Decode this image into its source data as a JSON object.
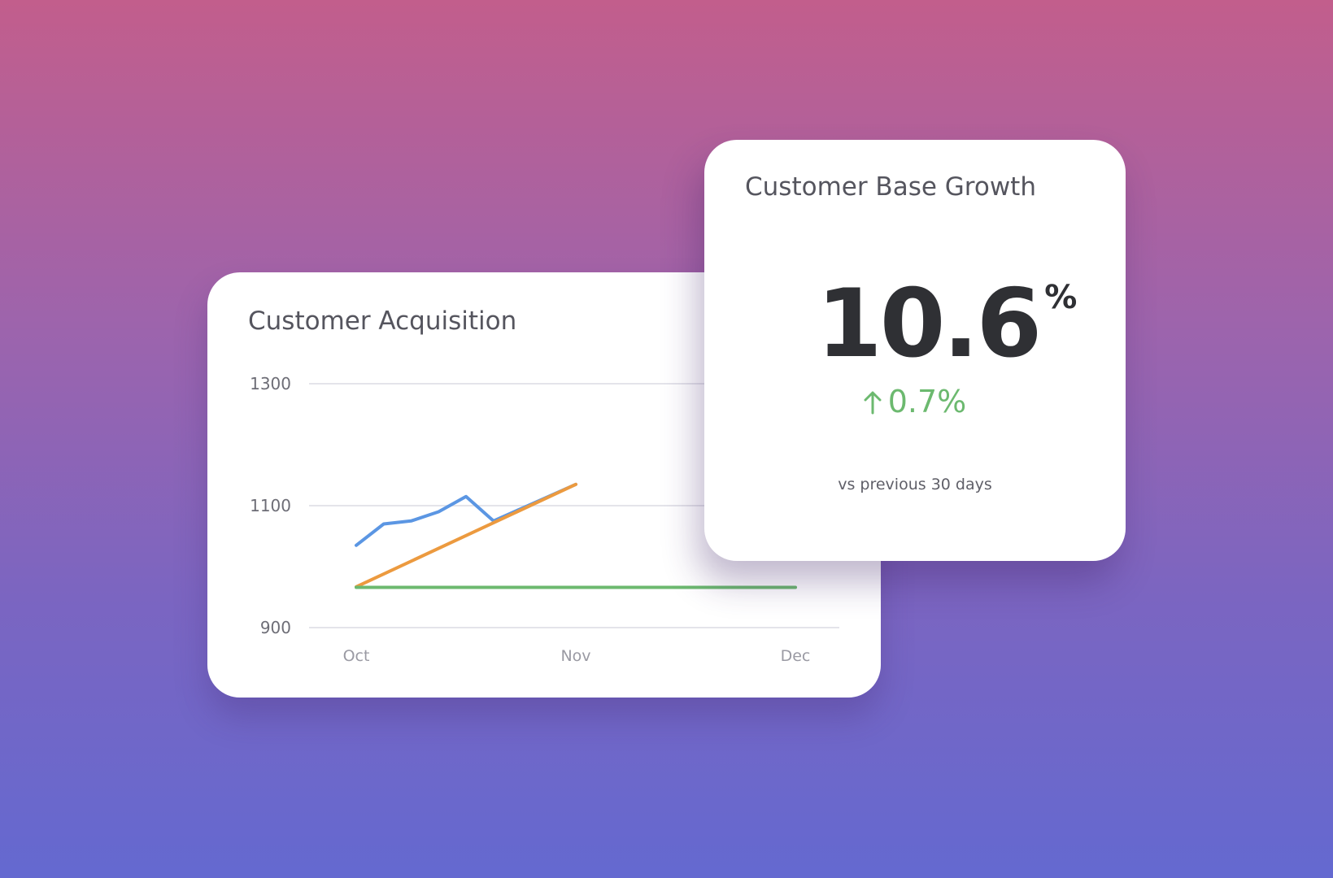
{
  "acquisition_card": {
    "title": "Customer Acquisition"
  },
  "growth_card": {
    "title": "Customer Base Growth",
    "value": "10.6",
    "unit": "%",
    "delta": "0.7%",
    "delta_direction": "up",
    "comparison": "vs previous 30 days"
  },
  "colors": {
    "series_blue": "#5b96e3",
    "series_orange": "#ec9a3f",
    "series_green": "#6cb96f",
    "delta_positive": "#6cb96f"
  },
  "icons": {
    "delta": "arrow-up-icon"
  },
  "chart_data": {
    "type": "line",
    "title": "Customer Acquisition",
    "xlabel": "",
    "ylabel": "",
    "x_ticks": [
      "Oct",
      "Nov",
      "Dec"
    ],
    "y_ticks": [
      "1300",
      "1100",
      "900"
    ],
    "xlim": [
      0,
      8
    ],
    "ylim": [
      900,
      1300
    ],
    "grid": true,
    "series": [
      {
        "color": "#5b96e3",
        "x": [
          0,
          0.5,
          1,
          1.5,
          2,
          2.5,
          3,
          3.5,
          4
        ],
        "y": [
          1035,
          1070,
          1075,
          1090,
          1115,
          1075,
          1095,
          1115,
          1135
        ]
      },
      {
        "color": "#ec9a3f",
        "x": [
          0,
          4
        ],
        "y": [
          967,
          1135
        ]
      },
      {
        "color": "#6cb96f",
        "x": [
          0,
          8
        ],
        "y": [
          966,
          966
        ]
      }
    ]
  }
}
